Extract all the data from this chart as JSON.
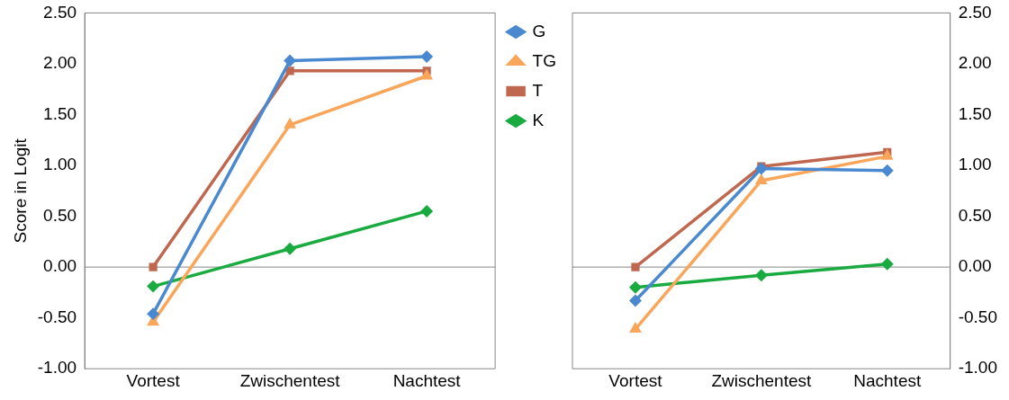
{
  "chart_data": [
    {
      "type": "line",
      "ylabel": "Score in Logit",
      "categories": [
        "Vortest",
        "Zwischentest",
        "Nachtest"
      ],
      "ylim": [
        -1,
        2.5
      ],
      "yticks": [
        {
          "value": -1,
          "label": "-1.00"
        },
        {
          "value": -0.5,
          "label": "-0.50"
        },
        {
          "value": 0,
          "label": "0.00"
        },
        {
          "value": 0.5,
          "label": "0.50"
        },
        {
          "value": 1,
          "label": "1.00"
        },
        {
          "value": 1.5,
          "label": "1.50"
        },
        {
          "value": 2,
          "label": "2.00"
        },
        {
          "value": 2.5,
          "label": "2.50"
        }
      ],
      "grid": false,
      "legend": "right",
      "tick_labels": "xy",
      "ref_lines": [
        {
          "axis": "y",
          "value": 0,
          "color": "#868686"
        }
      ],
      "series": [
        {
          "name": "G",
          "color": "#4a89d0",
          "marker": "diamond",
          "values": [
            -0.46,
            2.03,
            2.07
          ]
        },
        {
          "name": "TG",
          "color": "#f9a65a",
          "marker": "triangle",
          "values": [
            -0.54,
            1.4,
            1.88
          ]
        },
        {
          "name": "T",
          "color": "#c0674f",
          "marker": "square",
          "values": [
            0,
            1.93,
            1.93
          ]
        },
        {
          "name": "K",
          "color": "#1aab40",
          "marker": "diamond",
          "values": [
            -0.19,
            0.18,
            0.55
          ]
        }
      ]
    },
    {
      "type": "line",
      "categories": [
        "Vortest",
        "Zwischentest",
        "Nachtest"
      ],
      "ylim": [
        -1,
        2.5
      ],
      "yticks": [
        {
          "value": -1,
          "label": "-1.00"
        },
        {
          "value": -0.5,
          "label": "-0.50"
        },
        {
          "value": 0,
          "label": "0.00"
        },
        {
          "value": 0.5,
          "label": "0.50"
        },
        {
          "value": 1,
          "label": "1.00"
        },
        {
          "value": 1.5,
          "label": "1.50"
        },
        {
          "value": 2,
          "label": "2.00"
        },
        {
          "value": 2.5,
          "label": "2.50"
        }
      ],
      "grid": false,
      "legend": false,
      "ref_lines": [
        {
          "axis": "y",
          "value": 0,
          "color": "#868686"
        }
      ],
      "series": [
        {
          "color": "#4a89d0",
          "marker": "diamond",
          "values": [
            -0.33,
            0.97,
            0.95
          ]
        },
        {
          "color": "#f9a65a",
          "marker": "triangle",
          "values": [
            -0.61,
            0.85,
            1.09
          ]
        },
        {
          "color": "#c0674f",
          "marker": "square",
          "values": [
            0,
            0.99,
            1.13
          ]
        },
        {
          "color": "#1aab40",
          "marker": "diamond",
          "values": [
            -0.2,
            -0.08,
            0.03
          ]
        }
      ]
    }
  ]
}
